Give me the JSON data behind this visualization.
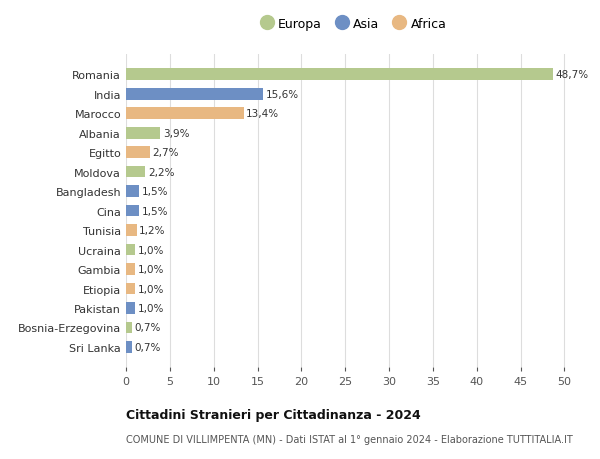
{
  "countries": [
    "Romania",
    "India",
    "Marocco",
    "Albania",
    "Egitto",
    "Moldova",
    "Bangladesh",
    "Cina",
    "Tunisia",
    "Ucraina",
    "Gambia",
    "Etiopia",
    "Pakistan",
    "Bosnia-Erzegovina",
    "Sri Lanka"
  ],
  "values": [
    48.7,
    15.6,
    13.4,
    3.9,
    2.7,
    2.2,
    1.5,
    1.5,
    1.2,
    1.0,
    1.0,
    1.0,
    1.0,
    0.7,
    0.7
  ],
  "labels": [
    "48,7%",
    "15,6%",
    "13,4%",
    "3,9%",
    "2,7%",
    "2,2%",
    "1,5%",
    "1,5%",
    "1,2%",
    "1,0%",
    "1,0%",
    "1,0%",
    "1,0%",
    "0,7%",
    "0,7%"
  ],
  "continents": [
    "Europa",
    "Asia",
    "Africa",
    "Europa",
    "Africa",
    "Europa",
    "Asia",
    "Asia",
    "Africa",
    "Europa",
    "Africa",
    "Africa",
    "Asia",
    "Europa",
    "Asia"
  ],
  "colors": {
    "Europa": "#b5c98e",
    "Asia": "#6d8fc4",
    "Africa": "#e8b882"
  },
  "bg_color": "#ffffff",
  "grid_color": "#dddddd",
  "title": "Cittadini Stranieri per Cittadinanza - 2024",
  "subtitle": "COMUNE DI VILLIMPENTA (MN) - Dati ISTAT al 1° gennaio 2024 - Elaborazione TUTTITALIA.IT",
  "xlim": [
    0,
    52
  ],
  "xticks": [
    0,
    5,
    10,
    15,
    20,
    25,
    30,
    35,
    40,
    45,
    50
  ]
}
